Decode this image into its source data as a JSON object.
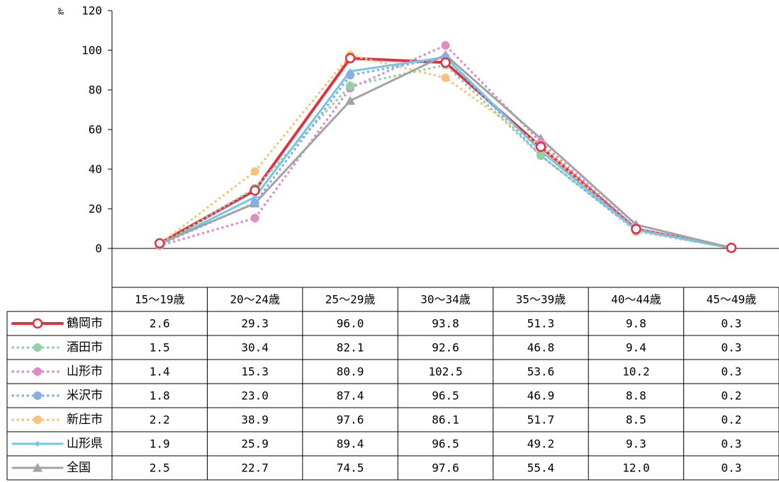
{
  "chart_data": {
    "type": "line",
    "unit": "‰",
    "ylim": [
      0,
      120
    ],
    "y_ticks": [
      0,
      20,
      40,
      60,
      80,
      100,
      120
    ],
    "categories": [
      "15～19歳",
      "20～24歳",
      "25～29歳",
      "30～34歳",
      "35～39歳",
      "40～44歳",
      "45～49歳"
    ],
    "series": [
      {
        "name": "鶴岡市",
        "color": "#e03241",
        "style": "solid",
        "marker": "circle-open",
        "values": [
          2.6,
          29.3,
          96.0,
          93.8,
          51.3,
          9.8,
          0.3
        ],
        "labels": [
          "2.6",
          "29.3",
          "96.0",
          "93.8",
          "51.3",
          "9.8",
          "0.3"
        ]
      },
      {
        "name": "酒田市",
        "color": "#8fd3a4",
        "style": "dotted",
        "marker": "circle",
        "values": [
          1.5,
          30.4,
          82.1,
          92.6,
          46.8,
          9.4,
          0.3
        ],
        "labels": [
          "1.5",
          "30.4",
          "82.1",
          "92.6",
          "46.8",
          "9.4",
          "0.3"
        ]
      },
      {
        "name": "山形市",
        "color": "#e08cc4",
        "style": "dotted",
        "marker": "circle",
        "values": [
          1.4,
          15.3,
          80.9,
          102.5,
          53.6,
          10.2,
          0.3
        ],
        "labels": [
          "1.4",
          "15.3",
          "80.9",
          "102.5",
          "53.6",
          "10.2",
          "0.3"
        ]
      },
      {
        "name": "米沢市",
        "color": "#89aee3",
        "style": "dotted",
        "marker": "circle",
        "values": [
          1.8,
          23.0,
          87.4,
          96.5,
          46.9,
          8.8,
          0.2
        ],
        "labels": [
          "1.8",
          "23.0",
          "87.4",
          "96.5",
          "46.9",
          "8.8",
          "0.2"
        ]
      },
      {
        "name": "新庄市",
        "color": "#f9c479",
        "style": "dotted",
        "marker": "circle",
        "values": [
          2.2,
          38.9,
          97.6,
          86.1,
          51.7,
          8.5,
          0.2
        ],
        "labels": [
          "2.2",
          "38.9",
          "97.6",
          "86.1",
          "51.7",
          "8.5",
          "0.2"
        ]
      },
      {
        "name": "山形県",
        "color": "#6fc8ec",
        "style": "solid",
        "marker": "diamond",
        "values": [
          1.9,
          25.9,
          89.4,
          96.5,
          49.2,
          9.3,
          0.3
        ],
        "labels": [
          "1.9",
          "25.9",
          "89.4",
          "96.5",
          "49.2",
          "9.3",
          "0.3"
        ]
      },
      {
        "name": "全国",
        "color": "#a3a3a3",
        "style": "solid",
        "marker": "triangle",
        "values": [
          2.5,
          22.7,
          74.5,
          97.6,
          55.4,
          12.0,
          0.3
        ],
        "labels": [
          "2.5",
          "22.7",
          "74.5",
          "97.6",
          "55.4",
          "12.0",
          "0.3"
        ]
      }
    ]
  }
}
